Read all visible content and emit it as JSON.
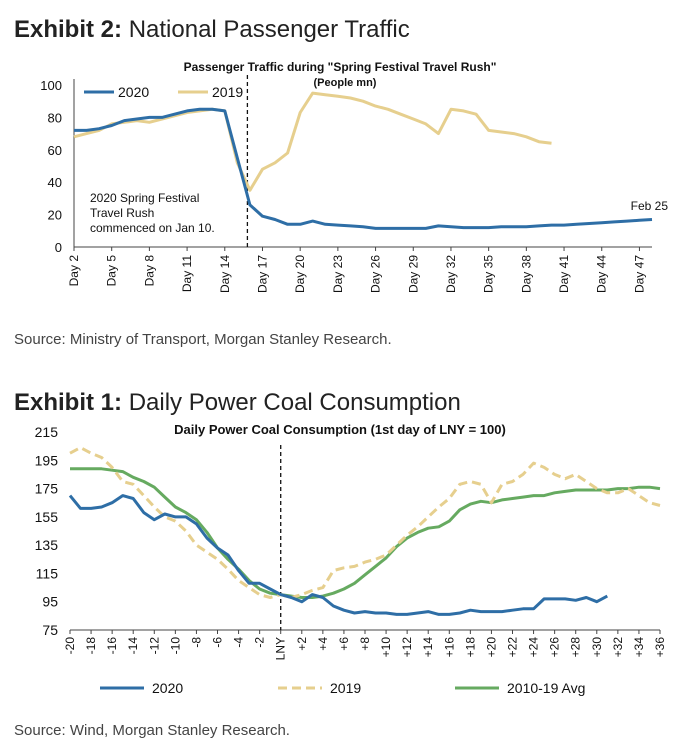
{
  "exhibits": [
    {
      "label": "Exhibit 2:",
      "title": "National Passenger Traffic",
      "source": "Source: Ministry of Transport, Morgan Stanley Research.",
      "chart_data": {
        "type": "line",
        "title": "Passenger Traffic during \"Spring Festival Travel Rush\"",
        "subtitle": "(People mn)",
        "xlabel": "",
        "ylabel": "",
        "ylim": [
          0,
          100
        ],
        "yticks": [
          0,
          20,
          40,
          60,
          80,
          100
        ],
        "x_range": [
          2,
          48
        ],
        "xticks": [
          "Day 2",
          "Day 5",
          "Day 8",
          "Day 11",
          "Day 14",
          "Day 17",
          "Day 20",
          "Day 23",
          "Day 26",
          "Day 29",
          "Day 32",
          "Day 35",
          "Day 38",
          "Day 41",
          "Day 44",
          "Day 47"
        ],
        "grid": false,
        "legend_position": "top-left",
        "divider_at": 15.8,
        "annotations": [
          {
            "lines": [
              "2020 Spring Festival",
              "Travel Rush",
              "commenced on Jan 10."
            ]
          },
          {
            "lines": [
              "Feb 25"
            ]
          }
        ],
        "series": [
          {
            "name": "2020",
            "color": "#2e6ea6",
            "dashed": false,
            "x": [
              2,
              3,
              4,
              5,
              6,
              7,
              8,
              9,
              10,
              11,
              12,
              13,
              14,
              15,
              16,
              17,
              18,
              19,
              20,
              21,
              22,
              23,
              24,
              25,
              26,
              27,
              28,
              29,
              30,
              31,
              32,
              33,
              34,
              35,
              36,
              37,
              38,
              39,
              40,
              41,
              42,
              43,
              44,
              45,
              46,
              47,
              48
            ],
            "y": [
              72,
              72,
              73,
              75,
              78,
              79,
              80,
              80,
              82,
              84,
              85,
              85,
              84,
              55,
              26,
              19,
              17,
              14,
              14,
              16,
              14,
              13.5,
              13,
              12.5,
              11.5,
              11.5,
              11.5,
              11.5,
              11.5,
              13,
              12.5,
              12,
              12,
              12,
              12.5,
              12.5,
              12.5,
              13,
              13.5,
              13.5,
              14,
              14.5,
              15,
              15.5,
              16,
              16.5,
              17
            ]
          },
          {
            "name": "2019",
            "color": "#e6cf8e",
            "dashed": false,
            "x": [
              2,
              3,
              4,
              5,
              6,
              7,
              8,
              9,
              10,
              11,
              12,
              13,
              14,
              15,
              16,
              17,
              18,
              19,
              20,
              21,
              22,
              23,
              24,
              25,
              26,
              27,
              28,
              29,
              30,
              31,
              32,
              33,
              34,
              35,
              36,
              37,
              38,
              39,
              40
            ],
            "y": [
              68,
              70,
              72,
              76,
              77,
              78,
              77,
              79,
              81,
              83,
              84,
              85,
              84,
              52,
              35,
              48,
              52,
              58,
              83,
              95,
              94,
              93,
              92,
              90,
              87,
              85,
              82,
              79,
              76,
              70,
              85,
              84,
              82,
              72,
              71,
              70,
              68,
              65,
              64
            ]
          }
        ]
      }
    },
    {
      "label": "Exhibit 1:",
      "title": "Daily Power Coal Consumption",
      "source": "Source: Wind, Morgan Stanley Research.",
      "chart_data": {
        "type": "line",
        "title": "Daily Power Coal Consumption (1st day of LNY = 100)",
        "xlabel": "",
        "ylabel": "",
        "ylim": [
          75,
          215
        ],
        "yticks": [
          75,
          95,
          115,
          135,
          155,
          175,
          195,
          215
        ],
        "x_range": [
          -20,
          36
        ],
        "xticks": [
          "-20",
          "-18",
          "-16",
          "-14",
          "-12",
          "-10",
          "-8",
          "-6",
          "-4",
          "-2",
          "LNY",
          "+2",
          "+4",
          "+6",
          "+8",
          "+10",
          "+12",
          "+14",
          "+16",
          "+18",
          "+20",
          "+22",
          "+24",
          "+26",
          "+28",
          "+30",
          "+32",
          "+34",
          "+36"
        ],
        "grid": false,
        "legend_position": "bottom",
        "divider_at": 0,
        "series": [
          {
            "name": "2020",
            "color": "#2e6ea6",
            "dashed": false,
            "x": [
              -20,
              -19,
              -18,
              -17,
              -16,
              -15,
              -14,
              -13,
              -12,
              -11,
              -10,
              -9,
              -8,
              -7,
              -6,
              -5,
              -4,
              -3,
              -2,
              -1,
              0,
              1,
              2,
              3,
              4,
              5,
              6,
              7,
              8,
              9,
              10,
              11,
              12,
              13,
              14,
              15,
              16,
              17,
              18,
              19,
              20,
              21,
              22,
              23,
              24,
              25,
              26,
              27,
              28,
              29,
              30,
              31
            ],
            "y": [
              170,
              161,
              161,
              162,
              165,
              170,
              168,
              158,
              153,
              157,
              155,
              155,
              150,
              140,
              133,
              128,
              117,
              108,
              108,
              104,
              100,
              98,
              95,
              100,
              98,
              92,
              89,
              87,
              88,
              87,
              87,
              86,
              86,
              87,
              88,
              86,
              86,
              87,
              89,
              88,
              88,
              88,
              89,
              90,
              90,
              97,
              97,
              97,
              96,
              98,
              95,
              99
            ]
          },
          {
            "name": "2019",
            "color": "#e6cf8e",
            "dashed": true,
            "x": [
              -20,
              -19,
              -18,
              -17,
              -16,
              -15,
              -14,
              -13,
              -12,
              -11,
              -10,
              -9,
              -8,
              -7,
              -6,
              -5,
              -4,
              -3,
              -2,
              -1,
              0,
              1,
              2,
              3,
              4,
              5,
              6,
              7,
              8,
              9,
              10,
              11,
              12,
              13,
              14,
              15,
              16,
              17,
              18,
              19,
              20,
              21,
              22,
              23,
              24,
              25,
              26,
              27,
              28,
              29,
              30,
              31,
              32,
              33,
              34,
              35,
              36
            ],
            "y": [
              200,
              204,
              200,
              197,
              190,
              180,
              178,
              170,
              162,
              155,
              152,
              145,
              135,
              130,
              125,
              118,
              110,
              105,
              100,
              98,
              100,
              98,
              100,
              103,
              105,
              117,
              119,
              120,
              123,
              125,
              128,
              135,
              142,
              148,
              155,
              162,
              168,
              178,
              180,
              178,
              165,
              178,
              180,
              185,
              193,
              190,
              185,
              182,
              185,
              180,
              175,
              172,
              172,
              175,
              170,
              165,
              163
            ]
          },
          {
            "name": "2010-19 Avg",
            "color": "#66aa60",
            "dashed": false,
            "x": [
              -20,
              -19,
              -18,
              -17,
              -16,
              -15,
              -14,
              -13,
              -12,
              -11,
              -10,
              -9,
              -8,
              -7,
              -6,
              -5,
              -4,
              -3,
              -2,
              -1,
              0,
              1,
              2,
              3,
              4,
              5,
              6,
              7,
              8,
              9,
              10,
              11,
              12,
              13,
              14,
              15,
              16,
              17,
              18,
              19,
              20,
              21,
              22,
              23,
              24,
              25,
              26,
              27,
              28,
              29,
              30,
              31,
              32,
              33,
              34,
              35,
              36
            ],
            "y": [
              189,
              189,
              189,
              189,
              188,
              187,
              183,
              180,
              176,
              169,
              162,
              158,
              153,
              144,
              133,
              125,
              118,
              110,
              104,
              101,
              100,
              99,
              98,
              98,
              99,
              101,
              104,
              108,
              114,
              120,
              126,
              134,
              140,
              144,
              147,
              148,
              152,
              160,
              164,
              166,
              165,
              167,
              168,
              169,
              170,
              170,
              172,
              173,
              174,
              174,
              174,
              174,
              175,
              175,
              176,
              176,
              175
            ]
          }
        ]
      }
    }
  ]
}
